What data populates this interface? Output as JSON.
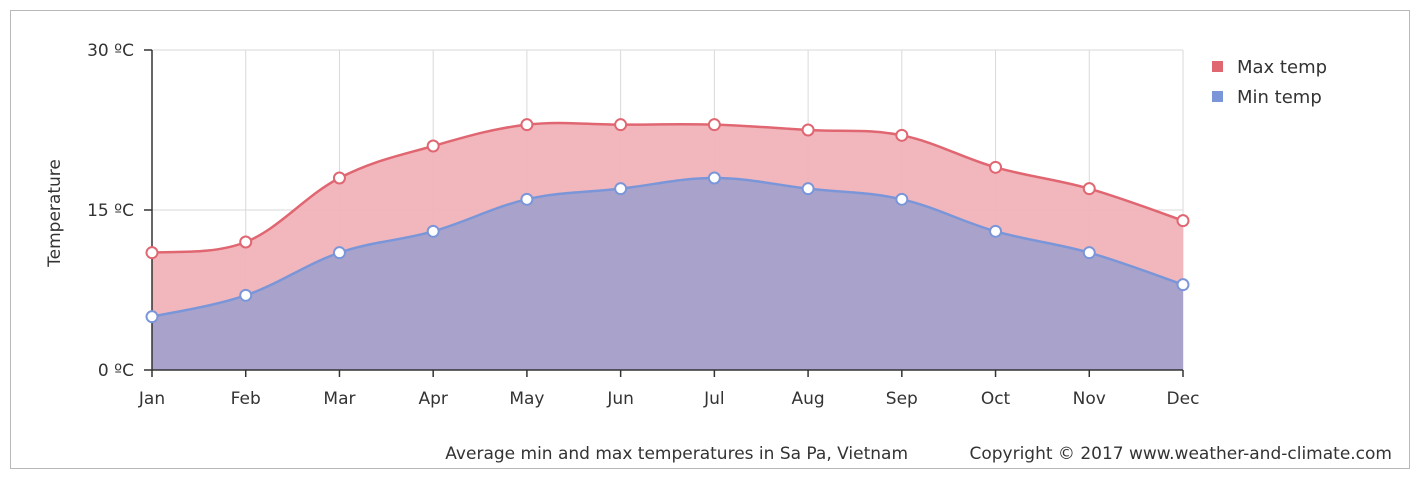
{
  "chart_data": {
    "type": "area",
    "categories": [
      "Jan",
      "Feb",
      "Mar",
      "Apr",
      "May",
      "Jun",
      "Jul",
      "Aug",
      "Sep",
      "Oct",
      "Nov",
      "Dec"
    ],
    "series": [
      {
        "name": "Max temp",
        "color": "#e06671",
        "fill": "#f0b3b9",
        "values": [
          11,
          12,
          18,
          21,
          23,
          23,
          23,
          22.5,
          22,
          19,
          17,
          14
        ]
      },
      {
        "name": "Min temp",
        "color": "#7b96d8",
        "fill": "#a9a3cc",
        "values": [
          5,
          7,
          11,
          13,
          16,
          17,
          18,
          17,
          16,
          13,
          11,
          8
        ]
      }
    ],
    "yticks": [
      {
        "value": 0,
        "label": "0 ºC"
      },
      {
        "value": 15,
        "label": "15 ºC"
      },
      {
        "value": 30,
        "label": "30 ºC"
      }
    ],
    "ylim": [
      0,
      30
    ],
    "ylabel": "Temperature",
    "xlabel": "",
    "legend_position": "top-right",
    "grid": true
  },
  "footer": {
    "caption": "Average min and max temperatures in Sa Pa, Vietnam",
    "copyright": "Copyright © 2017 www.weather-and-climate.com"
  }
}
